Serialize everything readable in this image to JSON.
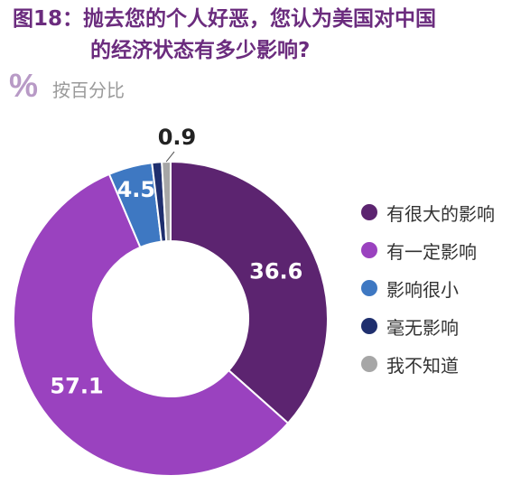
{
  "title_line1": "图18：抛去您的个人好恶，您认为美国对中国",
  "title_line2": "的经济状态有多少影响?",
  "unit_icon": "percent-icon",
  "unit_label": "按百分比",
  "colors": {
    "title": "#6b2c7e",
    "unit_icon": "#b89ac6",
    "slices": [
      "#5c2470",
      "#9a42bf",
      "#3e78c2",
      "#1f2f6e",
      "#a6a6a6"
    ]
  },
  "chart_data": {
    "type": "pie",
    "donut": true,
    "title": "",
    "categories": [
      "有很大的影响",
      "有一定影响",
      "影响很小",
      "毫无影响",
      "我不知道"
    ],
    "values": [
      36.6,
      57.1,
      4.5,
      1.0,
      0.9
    ],
    "data_labels": [
      "36.6",
      "57.1",
      "4.5",
      "",
      "0.9"
    ],
    "legend_position": "right"
  }
}
